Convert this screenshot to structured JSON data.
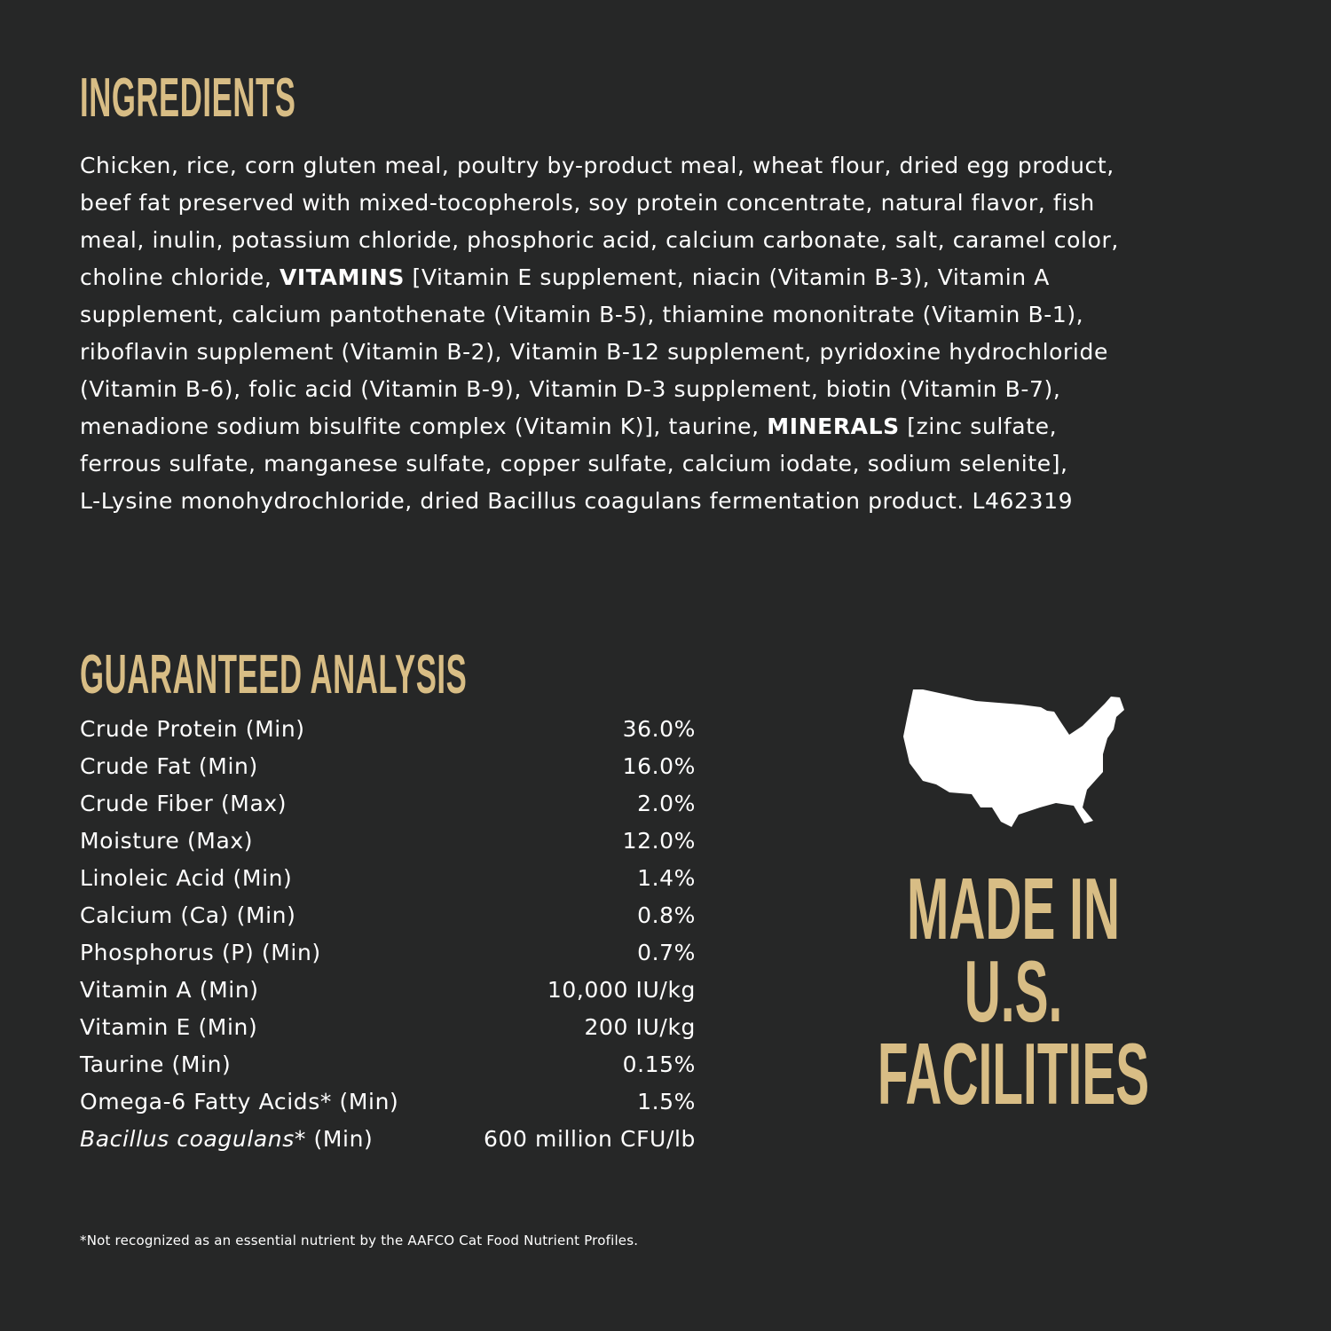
{
  "colors": {
    "background": "#262727",
    "accent": "#d8bd85",
    "text": "#ffffff"
  },
  "ingredients": {
    "title": "INGREDIENTS",
    "lines": [
      [
        {
          "text": "Chicken, rice, corn gluten meal, poultry by-product meal, wheat flour, dried egg product,"
        }
      ],
      [
        {
          "text": "beef fat preserved with mixed-tocopherols, soy protein concentrate, natural flavor, fish"
        }
      ],
      [
        {
          "text": "meal, inulin, potassium chloride, phosphoric acid, calcium carbonate, salt, caramel color,"
        }
      ],
      [
        {
          "text": "choline chloride, "
        },
        {
          "text": "VITAMINS",
          "bold": true
        },
        {
          "text": " [Vitamin E supplement, niacin (Vitamin B-3), Vitamin A"
        }
      ],
      [
        {
          "text": "supplement, calcium pantothenate (Vitamin B-5), thiamine mononitrate (Vitamin B-1),"
        }
      ],
      [
        {
          "text": "riboflavin supplement (Vitamin B-2), Vitamin B-12 supplement, pyridoxine hydrochloride"
        }
      ],
      [
        {
          "text": "(Vitamin B-6), folic acid (Vitamin B-9), Vitamin D-3 supplement, biotin (Vitamin B-7),"
        }
      ],
      [
        {
          "text": "menadione sodium bisulfite complex (Vitamin K)], taurine, "
        },
        {
          "text": "MINERALS",
          "bold": true
        },
        {
          "text": " [zinc sulfate,"
        }
      ],
      [
        {
          "text": "ferrous sulfate, manganese sulfate, copper sulfate, calcium iodate, sodium selenite],"
        }
      ],
      [
        {
          "text": "L-Lysine monohydrochloride, dried Bacillus coagulans fermentation product. L462319"
        }
      ]
    ]
  },
  "analysis": {
    "title": "GUARANTEED ANALYSIS",
    "rows": [
      {
        "label": "Crude Protein (Min)",
        "value": "36.0%"
      },
      {
        "label": "Crude Fat (Min)",
        "value": "16.0%"
      },
      {
        "label": "Crude Fiber (Max)",
        "value": "2.0%"
      },
      {
        "label": "Moisture (Max)",
        "value": "12.0%"
      },
      {
        "label": "Linoleic Acid (Min)",
        "value": "1.4%"
      },
      {
        "label": "Calcium (Ca) (Min)",
        "value": "0.8%"
      },
      {
        "label": "Phosphorus (P) (Min)",
        "value": "0.7%"
      },
      {
        "label": "Vitamin A (Min)",
        "value": "10,000 IU/kg"
      },
      {
        "label": "Vitamin E (Min)",
        "value": "200 IU/kg"
      },
      {
        "label": "Taurine (Min)",
        "value": "0.15%"
      },
      {
        "label": "Omega-6 Fatty Acids* (Min)",
        "value": "1.5%"
      },
      {
        "label_italic": "Bacillus coagulans",
        "label": "* (Min)",
        "value": "600 million CFU/lb"
      }
    ],
    "footnote": "*Not recognized as an essential nutrient by the AAFCO Cat Food Nutrient Profiles."
  },
  "badge": {
    "icon": "usa-map-icon",
    "lines": [
      "MADE IN",
      "U.S.",
      "FACILITIES"
    ]
  }
}
